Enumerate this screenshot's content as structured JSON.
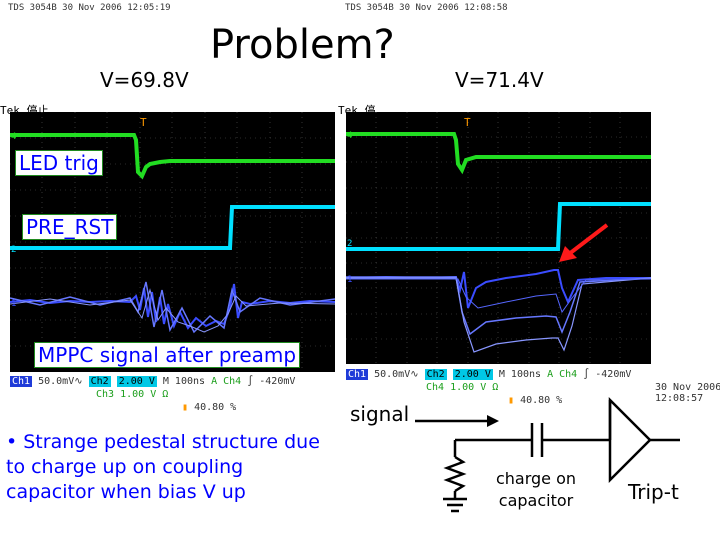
{
  "title": "Problem?",
  "left_panel": {
    "voltage": "V=69.8V",
    "header": "TDS 3054B   30 Nov 2006   12:05:19",
    "tek_label": "Tek 停止",
    "labels": {
      "led_trig": "LED trig",
      "pre_rst": "PRE_RST",
      "mppc_signal": "MPPC signal after preamp"
    },
    "status": {
      "ch1": "Ch1",
      "ch1_scale": "50.0mV∿",
      "ch2": "Ch2",
      "ch2_scale": "2.00 V",
      "ch3": "Ch3",
      "ch3_scale": "1.00 V Ω",
      "timebase": "M 100ns",
      "ch4": "A Ch4",
      "ch4_level": "∫ -420mV",
      "trigger_pos": "40.80 %"
    }
  },
  "right_panel": {
    "voltage": "V=71.4V",
    "header": "TDS 3054B   30 Nov 2006   12:08:58",
    "tek_label": "Tek 停",
    "status": {
      "ch1": "Ch1",
      "ch1_scale": "50.0mV∿",
      "ch2": "Ch2",
      "ch2_scale": "2.00 V",
      "ch4": "Ch4",
      "ch4_scale": "1.00 V Ω",
      "timebase": "M 100ns",
      "trig": "A Ch4",
      "trig_level": "∫ -420mV",
      "trigger_pos": "40.80 %",
      "date": "30 Nov 2006",
      "time": "12:08:57"
    }
  },
  "note": "• Strange pedestal structure due to charge up on coupling capacitor when bias V up",
  "circuit": {
    "signal": "signal",
    "charge": "charge on capacitor",
    "trip": "Trip-t"
  },
  "colors": {
    "led_trace": "#22dd22",
    "reset_trace": "#00e0ff",
    "signal_trace": "#3a4cff",
    "arrow": "#ff1a1a",
    "annotation_text": "#0000ff"
  }
}
